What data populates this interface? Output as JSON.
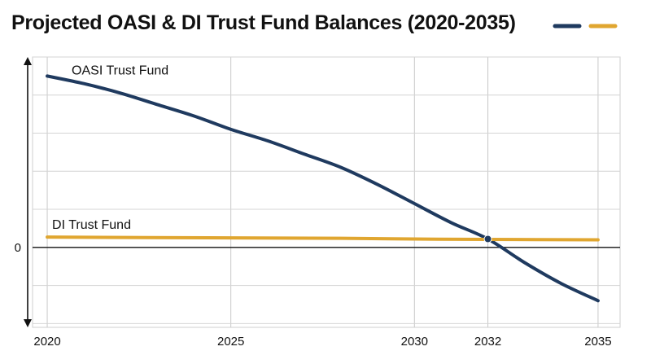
{
  "chart_data": {
    "type": "line",
    "title": "Projected OASI & DI Trust Fund Balances (2020-2035)",
    "xlabel": "",
    "ylabel": "",
    "x_ticks": [
      2020,
      2025,
      2030,
      2032,
      2035
    ],
    "y_ticks": [
      {
        "value": 0,
        "label": "0"
      }
    ],
    "xlim": [
      2019.6,
      2035.6
    ],
    "ylim": [
      -2.1,
      5.0
    ],
    "grid": true,
    "legend_position": "top-right",
    "crossing_marker": {
      "x": 2032,
      "y": 0.22
    },
    "series": [
      {
        "name": "OASI Trust Fund",
        "color": "#1f3a5f",
        "x": [
          2020,
          2021,
          2022,
          2023,
          2024,
          2025,
          2026,
          2027,
          2028,
          2029,
          2030,
          2031,
          2032,
          2033,
          2034,
          2035
        ],
        "values": [
          4.5,
          4.3,
          4.05,
          3.75,
          3.45,
          3.1,
          2.8,
          2.45,
          2.1,
          1.65,
          1.15,
          0.65,
          0.22,
          -0.4,
          -0.95,
          -1.4
        ]
      },
      {
        "name": "DI Trust Fund",
        "color": "#e0a630",
        "x": [
          2020,
          2025,
          2028,
          2030,
          2032,
          2035
        ],
        "values": [
          0.27,
          0.25,
          0.24,
          0.22,
          0.21,
          0.2
        ]
      }
    ]
  }
}
